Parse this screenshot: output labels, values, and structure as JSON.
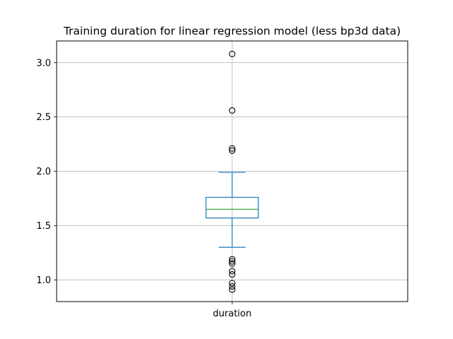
{
  "chart_data": {
    "type": "box",
    "title": "Training duration for linear regression model (less bp3d data)",
    "categories": [
      "duration"
    ],
    "xlabel": "",
    "ylabel": "",
    "ylim": [
      0.8,
      3.2
    ],
    "yticks": [
      1.0,
      1.5,
      2.0,
      2.5,
      3.0
    ],
    "ytick_labels": [
      "1.0",
      "1.5",
      "2.0",
      "2.5",
      "3.0"
    ],
    "grid": true,
    "box": {
      "whisker_low": 1.3,
      "q1": 1.57,
      "median": 1.65,
      "q3": 1.76,
      "whisker_high": 1.99
    },
    "outliers": [
      3.08,
      2.56,
      2.21,
      2.19,
      1.19,
      1.17,
      1.15,
      1.08,
      1.05,
      0.97,
      0.94,
      0.91
    ],
    "colors": {
      "box": "#1f77b4",
      "median": "#2ca02c",
      "grid": "#b0b0b0",
      "axes": "#000000",
      "outlier_edge": "#000000"
    }
  }
}
